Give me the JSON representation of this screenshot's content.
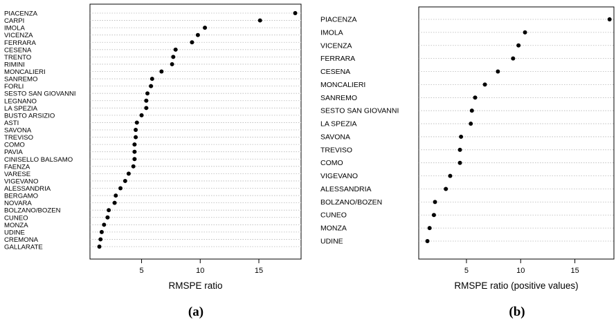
{
  "chart_data": [
    {
      "type": "scatter",
      "panel_label": "(a)",
      "xlabel": "RMSPE ratio",
      "ylabel": "",
      "xlim": [
        0.6,
        18.6
      ],
      "xticks": [
        5,
        10,
        15
      ],
      "grid": "horizontal-dotted",
      "categories": [
        "PIACENZA",
        "CARPI",
        "IMOLA",
        "VICENZA",
        "FERRARA",
        "CESENA",
        "TRENTO",
        "RIMINI",
        "MONCALIERI",
        "SANREMO",
        "FORLI",
        "SESTO SAN GIOVANNI",
        "LEGNANO",
        "LA SPEZIA",
        "BUSTO ARSIZIO",
        "ASTI",
        "SAVONA",
        "TREVISO",
        "COMO",
        "PAVIA",
        "CINISELLO BALSAMO",
        "FAENZA",
        "VARESE",
        "VIGEVANO",
        "ALESSANDRIA",
        "BERGAMO",
        "NOVARA",
        "BOLZANO/BOZEN",
        "CUNEO",
        "MONZA",
        "UDINE",
        "CREMONA",
        "GALLARATE"
      ],
      "values": [
        18.1,
        15.1,
        10.4,
        9.8,
        9.3,
        7.9,
        7.7,
        7.6,
        6.7,
        5.9,
        5.8,
        5.5,
        5.4,
        5.4,
        5.0,
        4.6,
        4.5,
        4.5,
        4.4,
        4.4,
        4.4,
        4.3,
        3.9,
        3.6,
        3.2,
        2.8,
        2.7,
        2.2,
        2.1,
        1.8,
        1.6,
        1.5,
        1.4
      ]
    },
    {
      "type": "scatter",
      "panel_label": "(b)",
      "xlabel": "RMSPE ratio (positive values)",
      "ylabel": "",
      "xlim": [
        0.6,
        18.6
      ],
      "xticks": [
        5,
        10,
        15
      ],
      "grid": "horizontal-dotted",
      "categories": [
        "PIACENZA",
        "IMOLA",
        "VICENZA",
        "FERRARA",
        "CESENA",
        "MONCALIERI",
        "SANREMO",
        "SESTO SAN GIOVANNI",
        "LA SPEZIA",
        "SAVONA",
        "TREVISO",
        "COMO",
        "VIGEVANO",
        "ALESSANDRIA",
        "BOLZANO/BOZEN",
        "CUNEO",
        "MONZA",
        "UDINE"
      ],
      "values": [
        18.2,
        10.4,
        9.8,
        9.3,
        7.9,
        6.7,
        5.8,
        5.5,
        5.4,
        4.5,
        4.4,
        4.4,
        3.5,
        3.1,
        2.1,
        2.0,
        1.6,
        1.4
      ]
    }
  ]
}
